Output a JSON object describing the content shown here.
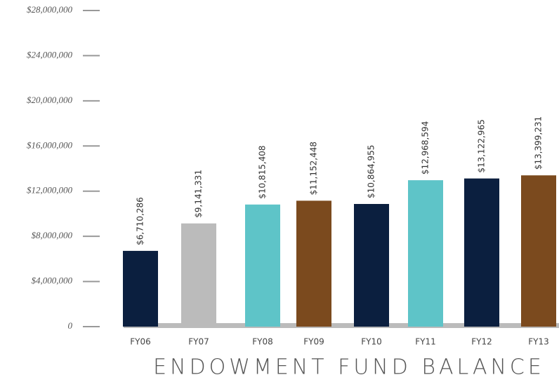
{
  "chart_data": {
    "type": "bar",
    "title": "ENDOWMENT FUND BALANCE",
    "categories": [
      "FY06",
      "FY07",
      "FY08",
      "FY09",
      "FY10",
      "FY11",
      "FY12",
      "FY13"
    ],
    "values": [
      6710286,
      9141331,
      10815408,
      11152448,
      10864955,
      12968594,
      13122965,
      13399231
    ],
    "value_labels": [
      "$6,710,286",
      "$9,141,331",
      "$10,815,408",
      "$11,152,448",
      "$10,864,955",
      "$12,968,594",
      "$13,122,965",
      "$13,399,231"
    ],
    "colors": [
      "#0b1f3f",
      "#bbbbbb",
      "#5ec4c8",
      "#7b4a1e",
      "#0b1f3f",
      "#5ec4c8",
      "#0b1f3f",
      "#7b4a1e"
    ],
    "ylim": [
      0,
      28000000
    ],
    "yticks": [
      0,
      {
        "value": 4000000,
        "label": "$4,000,000"
      },
      {
        "value": 8000000,
        "label": "$8,000,000"
      },
      {
        "value": 12000000,
        "label": "$12,000,000"
      },
      {
        "value": 16000000,
        "label": "$16,000,000"
      },
      {
        "value": 20000000,
        "label": "$20,000,000"
      },
      {
        "value": 24000000,
        "label": "$24,000,000"
      },
      {
        "value": 28000000,
        "label": "$28,000,000"
      }
    ]
  }
}
